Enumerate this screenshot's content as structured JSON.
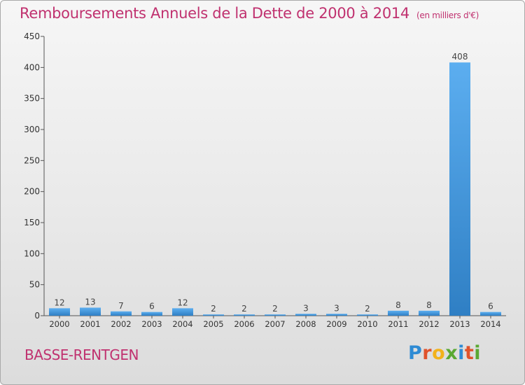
{
  "header": {
    "title": "Remboursements Annuels de la Dette de 2000 à 2014",
    "unit": "(en milliers d'€)"
  },
  "footer": {
    "place": "BASSE-RENTGEN",
    "brand": "Proxiti"
  },
  "colors": {
    "accent": "#c0316f",
    "bar": "#3b8fd6",
    "bar_top": "#5caef0",
    "axis": "#333333"
  },
  "chart_data": {
    "type": "bar",
    "title": "Remboursements Annuels de la Dette de 2000 à 2014",
    "categories": [
      "2000",
      "2001",
      "2002",
      "2003",
      "2004",
      "2005",
      "2006",
      "2007",
      "2008",
      "2009",
      "2010",
      "2011",
      "2012",
      "2013",
      "2014"
    ],
    "values": [
      12,
      13,
      7,
      6,
      12,
      2,
      2,
      2,
      3,
      3,
      2,
      8,
      8,
      408,
      6
    ],
    "ylim": [
      0,
      450
    ],
    "yticks": [
      0,
      50,
      100,
      150,
      200,
      250,
      300,
      350,
      400,
      450
    ],
    "grid": false,
    "data_labels": true
  }
}
